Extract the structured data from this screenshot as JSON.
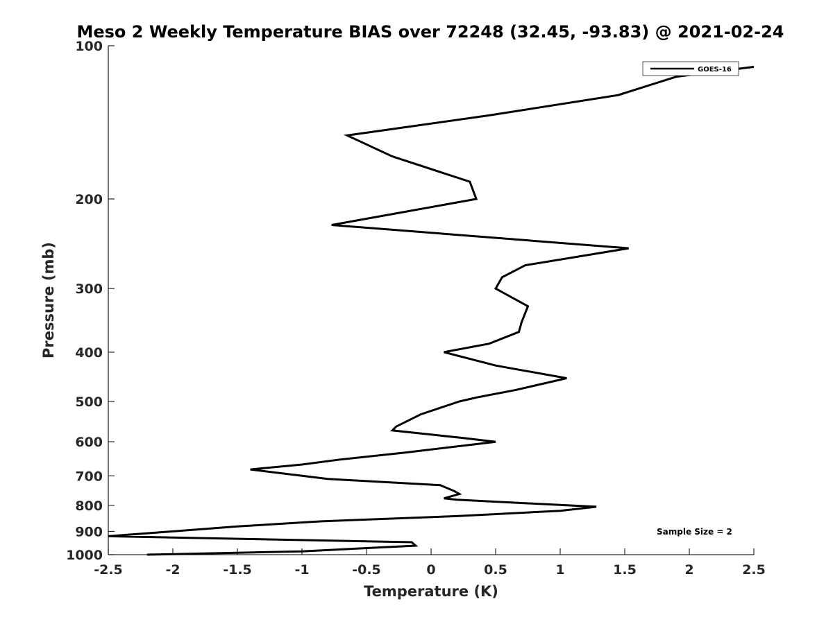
{
  "chart_data": {
    "type": "line",
    "title": "Meso 2 Weekly Temperature BIAS over 72248 (32.45, -93.83) @ 2021-02-24",
    "xlabel": "Temperature (K)",
    "ylabel": "Pressure (mb)",
    "xlim": [
      -2.5,
      2.5
    ],
    "ylim": [
      100,
      1000
    ],
    "y_scale": "log",
    "y_reversed": true,
    "grid": false,
    "legend_position": "top-right",
    "x_ticks": [
      -2.5,
      -2,
      -1.5,
      -1,
      -0.5,
      0,
      0.5,
      1,
      1.5,
      2,
      2.5
    ],
    "x_tick_labels": [
      "-2.5",
      "-2",
      "-1.5",
      "-1",
      "-0.5",
      "0",
      "0.5",
      "1",
      "1.5",
      "2",
      "2.5"
    ],
    "y_ticks": [
      100,
      200,
      300,
      400,
      500,
      600,
      700,
      800,
      900,
      1000
    ],
    "y_tick_labels": [
      "100",
      "200",
      "300",
      "400",
      "500",
      "600",
      "700",
      "800",
      "900",
      "1000"
    ],
    "series": [
      {
        "name": "GOES-16",
        "color": "#000000",
        "points": [
          {
            "x": 2.5,
            "y": 110
          },
          {
            "x": 1.9,
            "y": 115
          },
          {
            "x": 1.45,
            "y": 125
          },
          {
            "x": 0.45,
            "y": 137
          },
          {
            "x": -0.65,
            "y": 150
          },
          {
            "x": -0.3,
            "y": 165
          },
          {
            "x": 0.3,
            "y": 185
          },
          {
            "x": 0.35,
            "y": 200
          },
          {
            "x": -0.77,
            "y": 225
          },
          {
            "x": 1.53,
            "y": 250
          },
          {
            "x": 0.73,
            "y": 270
          },
          {
            "x": 0.55,
            "y": 285
          },
          {
            "x": 0.5,
            "y": 300
          },
          {
            "x": 0.75,
            "y": 325
          },
          {
            "x": 0.7,
            "y": 350
          },
          {
            "x": 0.68,
            "y": 365
          },
          {
            "x": 0.45,
            "y": 385
          },
          {
            "x": 0.1,
            "y": 400
          },
          {
            "x": 0.5,
            "y": 425
          },
          {
            "x": 1.05,
            "y": 450
          },
          {
            "x": 0.65,
            "y": 475
          },
          {
            "x": 0.37,
            "y": 490
          },
          {
            "x": 0.22,
            "y": 500
          },
          {
            "x": -0.08,
            "y": 530
          },
          {
            "x": -0.27,
            "y": 560
          },
          {
            "x": -0.3,
            "y": 570
          },
          {
            "x": 0.25,
            "y": 590
          },
          {
            "x": 0.5,
            "y": 600
          },
          {
            "x": -0.2,
            "y": 630
          },
          {
            "x": -0.7,
            "y": 650
          },
          {
            "x": -1.0,
            "y": 665
          },
          {
            "x": -1.4,
            "y": 680
          },
          {
            "x": -0.8,
            "y": 710
          },
          {
            "x": 0.07,
            "y": 730
          },
          {
            "x": 0.18,
            "y": 750
          },
          {
            "x": 0.22,
            "y": 760
          },
          {
            "x": 0.1,
            "y": 775
          },
          {
            "x": 0.2,
            "y": 780
          },
          {
            "x": 1.28,
            "y": 805
          },
          {
            "x": 1.0,
            "y": 820
          },
          {
            "x": 0.2,
            "y": 840
          },
          {
            "x": -0.85,
            "y": 860
          },
          {
            "x": -1.5,
            "y": 880
          },
          {
            "x": -2.0,
            "y": 900
          },
          {
            "x": -2.5,
            "y": 920
          },
          {
            "x": -0.15,
            "y": 945
          },
          {
            "x": -0.12,
            "y": 960
          },
          {
            "x": -1.0,
            "y": 985
          },
          {
            "x": -2.2,
            "y": 1000
          }
        ]
      }
    ],
    "annotation": "Sample Size = 2"
  }
}
